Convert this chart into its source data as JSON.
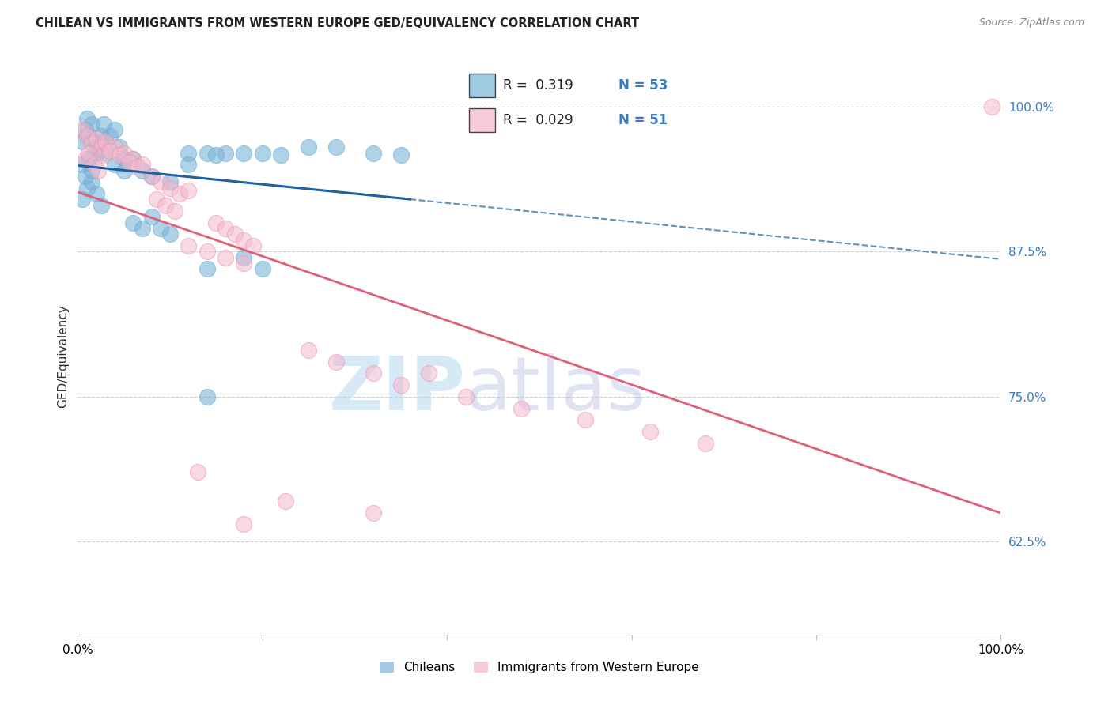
{
  "title": "CHILEAN VS IMMIGRANTS FROM WESTERN EUROPE GED/EQUIVALENCY CORRELATION CHART",
  "source": "Source: ZipAtlas.com",
  "ylabel": "GED/Equivalency",
  "watermark_zip": "ZIP",
  "watermark_atlas": "atlas",
  "series1_label": "Chileans",
  "series1_color": "#7ab4d8",
  "series1_edge": "#6baed6",
  "series2_label": "Immigrants from Western Europe",
  "series2_color": "#f4b8cc",
  "series2_edge": "#f090aa",
  "trend1_color": "#2060a0",
  "trend2_color": "#e0607a",
  "xlim": [
    0.0,
    1.0
  ],
  "ylim": [
    0.545,
    1.025
  ],
  "yticks": [
    0.625,
    0.75,
    0.875,
    1.0
  ],
  "ytick_labels": [
    "62.5%",
    "75.0%",
    "87.5%",
    "100.0%"
  ],
  "xticks": [
    0.0,
    0.2,
    0.4,
    0.6,
    0.8,
    1.0
  ],
  "xtick_labels": [
    "0.0%",
    "",
    "",
    "",
    "",
    "100.0%"
  ],
  "series1_R": "0.319",
  "series1_N": "53",
  "series2_R": "0.029",
  "series2_N": "51",
  "background_color": "#ffffff",
  "grid_color": "#cccccc",
  "blue_x": [
    0.005,
    0.008,
    0.01,
    0.012,
    0.015,
    0.018,
    0.02,
    0.022,
    0.025,
    0.028,
    0.005,
    0.008,
    0.012,
    0.015,
    0.018,
    0.005,
    0.01,
    0.015,
    0.02,
    0.025,
    0.03,
    0.035,
    0.04,
    0.045,
    0.05,
    0.03,
    0.04,
    0.05,
    0.06,
    0.07,
    0.06,
    0.07,
    0.08,
    0.09,
    0.1,
    0.08,
    0.1,
    0.12,
    0.14,
    0.16,
    0.12,
    0.15,
    0.18,
    0.2,
    0.22,
    0.25,
    0.28,
    0.32,
    0.35,
    0.14,
    0.18,
    0.2,
    0.14
  ],
  "blue_y": [
    0.97,
    0.98,
    0.99,
    0.975,
    0.985,
    0.97,
    0.96,
    0.965,
    0.975,
    0.985,
    0.95,
    0.94,
    0.955,
    0.945,
    0.96,
    0.92,
    0.93,
    0.935,
    0.925,
    0.915,
    0.97,
    0.975,
    0.98,
    0.965,
    0.955,
    0.96,
    0.95,
    0.945,
    0.955,
    0.945,
    0.9,
    0.895,
    0.905,
    0.895,
    0.89,
    0.94,
    0.935,
    0.96,
    0.96,
    0.96,
    0.95,
    0.958,
    0.96,
    0.96,
    0.958,
    0.965,
    0.965,
    0.96,
    0.958,
    0.86,
    0.87,
    0.86,
    0.75
  ],
  "pink_x": [
    0.005,
    0.01,
    0.015,
    0.02,
    0.025,
    0.008,
    0.012,
    0.018,
    0.022,
    0.028,
    0.03,
    0.04,
    0.05,
    0.06,
    0.07,
    0.035,
    0.045,
    0.055,
    0.065,
    0.08,
    0.09,
    0.1,
    0.11,
    0.12,
    0.085,
    0.095,
    0.105,
    0.15,
    0.16,
    0.17,
    0.18,
    0.19,
    0.12,
    0.14,
    0.16,
    0.18,
    0.25,
    0.28,
    0.32,
    0.35,
    0.38,
    0.42,
    0.48,
    0.55,
    0.62,
    0.68,
    0.13,
    0.18,
    0.225,
    0.32,
    0.99
  ],
  "pink_y": [
    0.98,
    0.975,
    0.968,
    0.972,
    0.965,
    0.955,
    0.96,
    0.95,
    0.945,
    0.958,
    0.97,
    0.965,
    0.96,
    0.955,
    0.95,
    0.962,
    0.958,
    0.952,
    0.948,
    0.94,
    0.935,
    0.93,
    0.925,
    0.928,
    0.92,
    0.915,
    0.91,
    0.9,
    0.895,
    0.89,
    0.885,
    0.88,
    0.88,
    0.875,
    0.87,
    0.865,
    0.79,
    0.78,
    0.77,
    0.76,
    0.77,
    0.75,
    0.74,
    0.73,
    0.72,
    0.71,
    0.685,
    0.64,
    0.66,
    0.65,
    1.0
  ]
}
